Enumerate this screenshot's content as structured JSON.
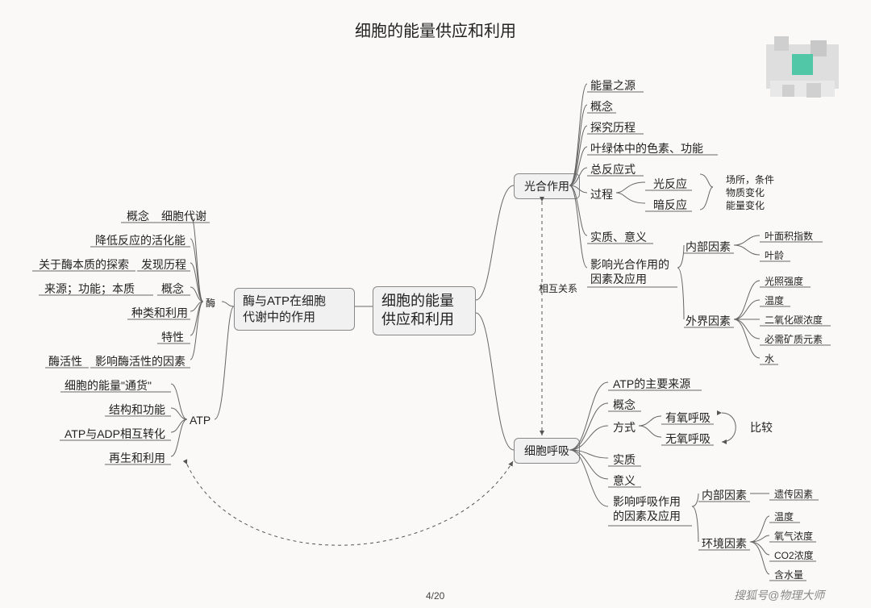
{
  "meta": {
    "title": "细胞的能量供应和利用",
    "pager": "4/20",
    "watermark": "搜狐号@物理大师",
    "title_fontsize": 20,
    "label_fontsize": 14,
    "small_fontsize": 12,
    "text_color": "#222222",
    "box_fill": "#f1f1f1",
    "box_border": "#888888",
    "page_bg": "#faf9f7",
    "stroke": "#666666",
    "dash_stroke": "#555555"
  },
  "center": {
    "text": "细胞的能量\n供应和利用"
  },
  "left_branch": {
    "node": {
      "text": "酶与ATP在细胞\n代谢中的作用"
    },
    "enzyme": {
      "label": "酶",
      "children": [
        {
          "text": "概念",
          "sub": "细胞代谢"
        },
        {
          "text": "降低反应的活化能"
        },
        {
          "text": "发现历程",
          "sub": "关于酶本质的探索"
        },
        {
          "text": "概念",
          "sub": "来源；功能；本质"
        },
        {
          "text": "种类和利用"
        },
        {
          "text": "特性"
        },
        {
          "text": "影响酶活性的因素",
          "sub": "酶活性"
        }
      ]
    },
    "atp": {
      "label": "ATP",
      "children": [
        {
          "text": "细胞的能量\"通货\""
        },
        {
          "text": "结构和功能"
        },
        {
          "text": "ATP与ADP相互转化"
        },
        {
          "text": "再生和利用"
        }
      ]
    }
  },
  "right_top": {
    "node": {
      "text": "光合作用"
    },
    "children": [
      {
        "text": "能量之源"
      },
      {
        "text": "概念"
      },
      {
        "text": "探究历程"
      },
      {
        "text": "叶绿体中的色素、功能"
      },
      {
        "text": "总反应式"
      },
      {
        "text": "过程",
        "sub": [
          {
            "text": "光反应"
          },
          {
            "text": "暗反应"
          }
        ],
        "note": [
          "场所，条件",
          "物质变化",
          "能量变化"
        ]
      },
      {
        "text": "实质、意义"
      },
      {
        "text": "影响光合作用的\n因素及应用",
        "sub": [
          {
            "text": "内部因素",
            "sub": [
              "叶面积指数",
              "叶龄"
            ]
          },
          {
            "text": "外界因素",
            "sub": [
              "光照强度",
              "温度",
              "二氧化碳浓度",
              "必需矿质元素",
              "水"
            ]
          }
        ]
      }
    ]
  },
  "right_bottom": {
    "node": {
      "text": "细胞呼吸"
    },
    "children": [
      {
        "text": "ATP的主要来源"
      },
      {
        "text": "概念"
      },
      {
        "text": "方式",
        "sub": [
          "有氧呼吸",
          "无氧呼吸"
        ],
        "note": "比较"
      },
      {
        "text": "实质"
      },
      {
        "text": "意义"
      },
      {
        "text": "影响呼吸作用\n的因素及应用",
        "sub": [
          {
            "text": "内部因素",
            "sub": [
              "遗传因素"
            ]
          },
          {
            "text": "环境因素",
            "sub": [
              "温度",
              "氧气浓度",
              "CO2浓度",
              "含水量"
            ]
          }
        ]
      }
    ]
  },
  "relation_label": "相互关系",
  "pixelated": {
    "colors": [
      "#cfcfcf",
      "#e8e8e8",
      "#52c7a8",
      "#b8b8b8"
    ]
  }
}
